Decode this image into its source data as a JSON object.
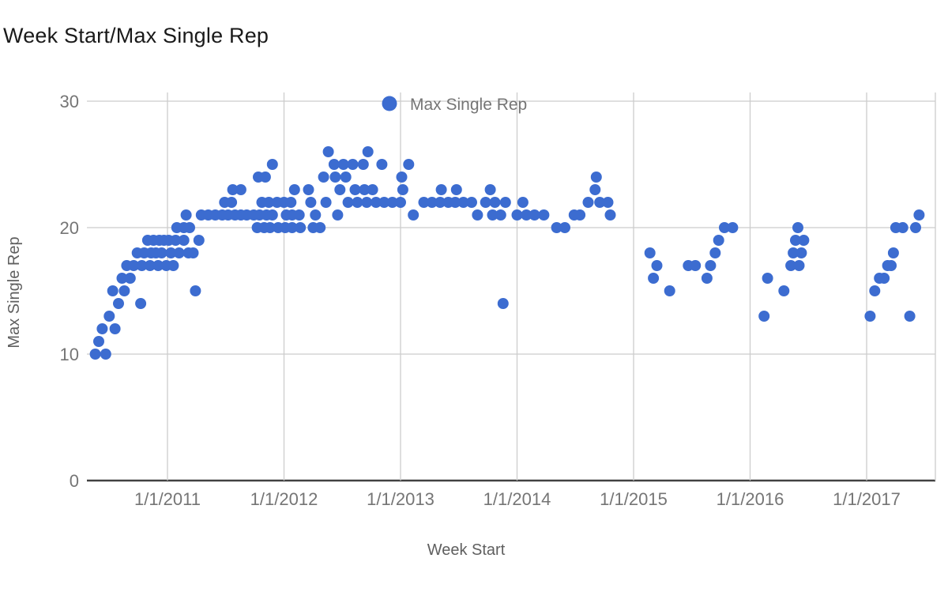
{
  "title": "Week Start/Max Single Rep",
  "chart_data": {
    "type": "scatter",
    "title": "Week Start/Max Single Rep",
    "xlabel": "Week Start",
    "ylabel": "Max Single Rep",
    "legend": {
      "label": "Max Single Rep",
      "position": "top-center"
    },
    "grid": true,
    "point_color": "#3c6cd0",
    "gridline_color": "#cccccc",
    "baseline_color": "#424242",
    "tick_color": "#757575",
    "y_ticks": [
      0,
      10,
      20,
      30
    ],
    "y_range": [
      0,
      30
    ],
    "x_ticks": [
      {
        "label": "1/1/2011",
        "year": 2011
      },
      {
        "label": "1/1/2012",
        "year": 2012
      },
      {
        "label": "1/1/2013",
        "year": 2013
      },
      {
        "label": "1/1/2014",
        "year": 2014
      },
      {
        "label": "1/1/2015",
        "year": 2015
      },
      {
        "label": "1/1/2016",
        "year": 2016
      },
      {
        "label": "1/1/2017",
        "year": 2017
      }
    ],
    "x_range_years": [
      2010.31,
      2017.59
    ],
    "series": [
      {
        "name": "Max Single Rep",
        "points": [
          [
            2010.38,
            10
          ],
          [
            2010.41,
            11
          ],
          [
            2010.44,
            12
          ],
          [
            2010.47,
            10
          ],
          [
            2010.5,
            13
          ],
          [
            2010.53,
            15
          ],
          [
            2010.55,
            12
          ],
          [
            2010.58,
            14
          ],
          [
            2010.61,
            16
          ],
          [
            2010.63,
            15
          ],
          [
            2010.65,
            17
          ],
          [
            2010.68,
            16
          ],
          [
            2010.71,
            17
          ],
          [
            2010.74,
            18
          ],
          [
            2010.77,
            14
          ],
          [
            2010.78,
            17
          ],
          [
            2010.8,
            18
          ],
          [
            2010.83,
            19
          ],
          [
            2010.85,
            17
          ],
          [
            2010.86,
            18
          ],
          [
            2010.88,
            19
          ],
          [
            2010.9,
            18
          ],
          [
            2010.92,
            17
          ],
          [
            2010.93,
            19
          ],
          [
            2010.95,
            18
          ],
          [
            2010.97,
            19
          ],
          [
            2010.99,
            17
          ],
          [
            2011.01,
            19
          ],
          [
            2011.03,
            18
          ],
          [
            2011.05,
            17
          ],
          [
            2011.07,
            19
          ],
          [
            2011.08,
            20
          ],
          [
            2011.1,
            18
          ],
          [
            2011.14,
            19
          ],
          [
            2011.14,
            20
          ],
          [
            2011.16,
            21
          ],
          [
            2011.18,
            18
          ],
          [
            2011.19,
            20
          ],
          [
            2011.22,
            18
          ],
          [
            2011.24,
            15
          ],
          [
            2011.27,
            19
          ],
          [
            2011.29,
            21
          ],
          [
            2011.35,
            21
          ],
          [
            2011.41,
            21
          ],
          [
            2011.47,
            21
          ],
          [
            2011.49,
            22
          ],
          [
            2011.52,
            21
          ],
          [
            2011.55,
            22
          ],
          [
            2011.56,
            23
          ],
          [
            2011.58,
            21
          ],
          [
            2011.63,
            23
          ],
          [
            2011.63,
            21
          ],
          [
            2011.68,
            21
          ],
          [
            2011.74,
            21
          ],
          [
            2011.77,
            20
          ],
          [
            2011.78,
            24
          ],
          [
            2011.79,
            21
          ],
          [
            2011.81,
            22
          ],
          [
            2011.83,
            20
          ],
          [
            2011.84,
            24
          ],
          [
            2011.85,
            21
          ],
          [
            2011.87,
            22
          ],
          [
            2011.88,
            20
          ],
          [
            2011.9,
            25
          ],
          [
            2011.9,
            21
          ],
          [
            2011.94,
            22
          ],
          [
            2011.95,
            20
          ],
          [
            2012.0,
            22
          ],
          [
            2012.01,
            20
          ],
          [
            2012.02,
            21
          ],
          [
            2012.06,
            22
          ],
          [
            2012.07,
            20
          ],
          [
            2012.07,
            21
          ],
          [
            2012.09,
            23
          ],
          [
            2012.13,
            21
          ],
          [
            2012.14,
            20
          ],
          [
            2012.21,
            23
          ],
          [
            2012.23,
            22
          ],
          [
            2012.25,
            20
          ],
          [
            2012.27,
            21
          ],
          [
            2012.31,
            20
          ],
          [
            2012.34,
            24
          ],
          [
            2012.36,
            22
          ],
          [
            2012.38,
            26
          ],
          [
            2012.43,
            25
          ],
          [
            2012.44,
            24
          ],
          [
            2012.46,
            21
          ],
          [
            2012.48,
            23
          ],
          [
            2012.51,
            25
          ],
          [
            2012.53,
            24
          ],
          [
            2012.55,
            22
          ],
          [
            2012.59,
            25
          ],
          [
            2012.61,
            23
          ],
          [
            2012.63,
            22
          ],
          [
            2012.68,
            25
          ],
          [
            2012.69,
            23
          ],
          [
            2012.71,
            22
          ],
          [
            2012.72,
            26
          ],
          [
            2012.76,
            23
          ],
          [
            2012.79,
            22
          ],
          [
            2012.84,
            25
          ],
          [
            2012.86,
            22
          ],
          [
            2012.93,
            22
          ],
          [
            2013.0,
            22
          ],
          [
            2013.01,
            24
          ],
          [
            2013.02,
            23
          ],
          [
            2013.07,
            25
          ],
          [
            2013.11,
            21
          ],
          [
            2013.2,
            22
          ],
          [
            2013.27,
            22
          ],
          [
            2013.34,
            22
          ],
          [
            2013.35,
            23
          ],
          [
            2013.41,
            22
          ],
          [
            2013.47,
            22
          ],
          [
            2013.48,
            23
          ],
          [
            2013.54,
            22
          ],
          [
            2013.61,
            22
          ],
          [
            2013.66,
            21
          ],
          [
            2013.73,
            22
          ],
          [
            2013.77,
            23
          ],
          [
            2013.79,
            21
          ],
          [
            2013.81,
            22
          ],
          [
            2013.86,
            21
          ],
          [
            2013.88,
            14
          ],
          [
            2013.9,
            22
          ],
          [
            2014.0,
            21
          ],
          [
            2014.05,
            22
          ],
          [
            2014.08,
            21
          ],
          [
            2014.15,
            21
          ],
          [
            2014.23,
            21
          ],
          [
            2014.34,
            20
          ],
          [
            2014.41,
            20
          ],
          [
            2014.49,
            21
          ],
          [
            2014.54,
            21
          ],
          [
            2014.61,
            22
          ],
          [
            2014.67,
            23
          ],
          [
            2014.68,
            24
          ],
          [
            2014.71,
            22
          ],
          [
            2014.78,
            22
          ],
          [
            2014.8,
            21
          ],
          [
            2015.14,
            18
          ],
          [
            2015.17,
            16
          ],
          [
            2015.2,
            17
          ],
          [
            2015.31,
            15
          ],
          [
            2015.47,
            17
          ],
          [
            2015.53,
            17
          ],
          [
            2015.63,
            16
          ],
          [
            2015.66,
            17
          ],
          [
            2015.7,
            18
          ],
          [
            2015.73,
            19
          ],
          [
            2015.78,
            20
          ],
          [
            2015.85,
            20
          ],
          [
            2016.12,
            13
          ],
          [
            2016.15,
            16
          ],
          [
            2016.29,
            15
          ],
          [
            2016.35,
            17
          ],
          [
            2016.37,
            18
          ],
          [
            2016.39,
            19
          ],
          [
            2016.41,
            20
          ],
          [
            2016.42,
            17
          ],
          [
            2016.44,
            18
          ],
          [
            2016.46,
            19
          ],
          [
            2017.03,
            13
          ],
          [
            2017.07,
            15
          ],
          [
            2017.11,
            16
          ],
          [
            2017.15,
            16
          ],
          [
            2017.18,
            17
          ],
          [
            2017.21,
            17
          ],
          [
            2017.23,
            18
          ],
          [
            2017.25,
            20
          ],
          [
            2017.31,
            20
          ],
          [
            2017.37,
            13
          ],
          [
            2017.42,
            20
          ],
          [
            2017.45,
            21
          ]
        ]
      }
    ]
  }
}
